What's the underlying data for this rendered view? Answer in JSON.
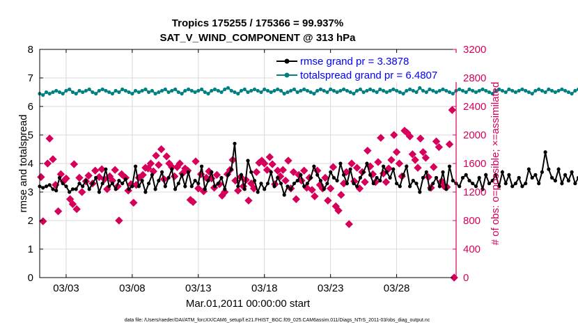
{
  "colors": {
    "rmse": "#000000",
    "spread": "#008080",
    "obs": "#d6005a",
    "legend_text": "#0000ff",
    "axis_right": "#d6005a",
    "grid": "#d9d9d9"
  },
  "chart_data": {
    "type": "line",
    "title_line1": "Tropics 175255 / 175366 = 99.937%",
    "title_line2": "SAT_V_WIND_COMPONENT @ 313 hPa",
    "xlabel": "Mar.01,2011 00:00:00 start",
    "ylabel_left": "rmse and totalspread",
    "ylabel_right": "# of obs: o=possible; ×=assimilated",
    "footer": "data file: /Users/raeder/DAI/ATM_forcXX/CAM6_setup/f.e21.FHIST_BGC.f09_025.CAM6assim.011/Diags_NTrS_2011-03/obs_diag_output.nc",
    "xlim": [
      1,
      32.5
    ],
    "ylim_left": [
      0,
      8
    ],
    "ylim_right": [
      0,
      3200
    ],
    "xticks": [
      3,
      8,
      13,
      18,
      23,
      28
    ],
    "xtick_labels": [
      "03/03",
      "03/08",
      "03/13",
      "03/18",
      "03/23",
      "03/28"
    ],
    "yticks_left": [
      0,
      1,
      2,
      3,
      4,
      5,
      6,
      7,
      8
    ],
    "yticks_right": [
      0,
      400,
      800,
      1200,
      1600,
      2000,
      2400,
      2800,
      3200
    ],
    "legend": [
      {
        "name": "rmse",
        "label": "rmse grand pr = 3.3878"
      },
      {
        "name": "totalspread",
        "label": "totalspread grand pr = 6.4807"
      }
    ],
    "t0": 1.0,
    "dt": 0.25,
    "rmse": [
      3.2,
      3.15,
      3.2,
      3.25,
      3.1,
      3.05,
      3.5,
      3.3,
      3.2,
      3.0,
      3.1,
      3.1,
      3.3,
      3.2,
      3.4,
      3.1,
      3.3,
      3.5,
      3.0,
      3.3,
      3.8,
      3.2,
      3.3,
      3.1,
      3.4,
      3.3,
      3.45,
      3.1,
      3.2,
      3.9,
      3.2,
      3.4,
      3.0,
      3.3,
      3.6,
      3.1,
      3.4,
      3.7,
      3.2,
      3.5,
      3.8,
      3.1,
      3.3,
      3.6,
      3.2,
      3.7,
      3.2,
      3.4,
      3.3,
      3.9,
      3.1,
      3.4,
      3.7,
      3.2,
      3.3,
      3.5,
      3.1,
      3.6,
      3.8,
      4.7,
      3.2,
      3.6,
      3.1,
      4.1,
      3.7,
      3.4,
      3.0,
      3.3,
      3.1,
      3.3,
      3.7,
      3.2,
      3.5,
      3.3,
      2.9,
      3.2,
      3.1,
      3.3,
      3.4,
      3.6,
      3.2,
      3.3,
      3.5,
      3.9,
      3.6,
      3.4,
      3.1,
      3.3,
      3.7,
      3.5,
      3.4,
      4.0,
      3.6,
      3.3,
      3.8,
      3.3,
      3.2,
      3.5,
      3.7,
      4.0,
      3.6,
      3.3,
      3.5,
      3.4,
      3.9,
      3.7,
      3.5,
      3.8,
      3.3,
      3.2,
      3.6,
      3.9,
      3.2,
      3.4,
      3.3,
      3.0,
      3.5,
      3.7,
      3.1,
      3.3,
      3.5,
      3.2,
      3.7,
      3.1,
      3.9,
      3.4,
      3.3,
      3.2,
      3.5,
      3.6,
      3.4,
      3.3,
      3.2,
      3.5,
      3.1,
      3.6,
      3.3,
      3.4,
      3.6,
      3.2,
      3.7,
      3.3,
      3.6,
      3.2,
      3.3,
      3.5,
      3.2,
      3.3,
      3.8,
      3.5,
      3.6,
      3.3,
      3.7,
      4.4,
      3.8,
      3.5,
      3.4,
      3.8,
      3.3,
      3.6,
      3.4,
      3.7,
      3.3,
      3.5,
      3.2,
      3.6,
      3.4,
      3.3,
      3.0,
      3.2,
      3.3,
      3.1,
      3.5,
      3.3,
      4.1,
      3.5,
      3.1
    ],
    "totalspread": [
      6.45,
      6.4,
      6.5,
      6.45,
      6.5,
      6.55,
      6.5,
      6.45,
      6.55,
      6.6,
      6.5,
      6.45,
      6.55,
      6.5,
      6.55,
      6.6,
      6.5,
      6.45,
      6.55,
      6.6,
      6.55,
      6.5,
      6.45,
      6.55,
      6.5,
      6.6,
      6.55,
      6.5,
      6.45,
      6.55,
      6.5,
      6.55,
      6.6,
      6.5,
      6.55,
      6.45,
      6.5,
      6.55,
      6.6,
      6.5,
      6.55,
      6.6,
      6.5,
      6.45,
      6.55,
      6.6,
      6.55,
      6.5,
      6.55,
      6.6,
      6.5,
      6.45,
      6.55,
      6.6,
      6.55,
      6.5,
      6.6,
      6.65,
      6.55,
      6.5,
      6.45,
      6.55,
      6.6,
      6.5,
      6.55,
      6.6,
      6.55,
      6.5,
      6.6,
      6.55,
      6.5,
      6.55,
      6.6,
      6.55,
      6.45,
      6.5,
      6.55,
      6.6,
      6.5,
      6.55,
      6.6,
      6.55,
      6.5,
      6.45,
      6.55,
      6.6,
      6.55,
      6.5,
      6.6,
      6.55,
      6.5,
      6.55,
      6.6,
      6.55,
      6.5,
      6.45,
      6.55,
      6.6,
      6.5,
      6.55,
      6.6,
      6.55,
      6.5,
      6.6,
      6.55,
      6.5,
      6.55,
      6.6,
      6.55,
      6.5,
      6.45,
      6.55,
      6.6,
      6.55,
      6.5,
      6.65,
      6.55,
      6.5,
      6.6,
      6.55,
      6.5,
      6.55,
      6.6,
      6.55,
      6.5,
      6.45,
      6.55,
      6.6,
      6.55,
      6.5,
      6.6,
      6.55,
      6.5,
      6.55,
      6.6,
      6.55,
      6.5,
      6.45,
      6.55,
      6.6,
      6.55,
      6.5,
      6.6,
      6.55,
      6.5,
      6.55,
      6.6,
      6.55,
      6.5,
      6.45,
      6.55,
      6.6,
      6.55,
      6.5,
      6.6,
      6.55,
      6.5,
      6.55,
      6.6,
      6.55,
      6.5,
      6.45,
      6.55,
      6.6,
      6.55,
      6.5,
      6.6,
      6.55,
      6.5,
      6.45,
      6.55,
      6.5,
      6.55
    ],
    "obs": [
      [
        1.1,
        1410
      ],
      [
        1.25,
        790
      ],
      [
        1.6,
        1600
      ],
      [
        1.75,
        1950
      ],
      [
        2.0,
        1660
      ],
      [
        2.2,
        1300
      ],
      [
        2.4,
        930
      ],
      [
        2.6,
        1450
      ],
      [
        2.8,
        1350
      ],
      [
        3.0,
        1390
      ],
      [
        3.3,
        1100
      ],
      [
        3.5,
        1030
      ],
      [
        3.6,
        1590
      ],
      [
        3.8,
        960
      ],
      [
        4.0,
        1400
      ],
      [
        4.2,
        1200
      ],
      [
        4.5,
        1350
      ],
      [
        4.7,
        1430
      ],
      [
        5.0,
        1320
      ],
      [
        5.2,
        1500
      ],
      [
        5.5,
        1410
      ],
      [
        5.7,
        1520
      ],
      [
        5.9,
        1380
      ],
      [
        6.1,
        1240
      ],
      [
        6.3,
        1420
      ],
      [
        6.5,
        1360
      ],
      [
        6.7,
        1510
      ],
      [
        6.9,
        1280
      ],
      [
        7.0,
        800
      ],
      [
        7.2,
        1450
      ],
      [
        7.5,
        1400
      ],
      [
        7.7,
        1220
      ],
      [
        7.9,
        1310
      ],
      [
        8.1,
        1050
      ],
      [
        8.3,
        1300
      ],
      [
        8.5,
        1400
      ],
      [
        8.8,
        1440
      ],
      [
        9.0,
        1540
      ],
      [
        9.2,
        1530
      ],
      [
        9.4,
        1600
      ],
      [
        9.6,
        1490
      ],
      [
        9.8,
        1710
      ],
      [
        10.0,
        1580
      ],
      [
        10.2,
        1800
      ],
      [
        10.4,
        1380
      ],
      [
        10.6,
        1700
      ],
      [
        10.8,
        1600
      ],
      [
        11.0,
        1550
      ],
      [
        11.2,
        1420
      ],
      [
        11.4,
        1550
      ],
      [
        11.6,
        1600
      ],
      [
        11.8,
        1460
      ],
      [
        12.0,
        1530
      ],
      [
        12.2,
        1500
      ],
      [
        12.4,
        1090
      ],
      [
        12.6,
        1060
      ],
      [
        12.8,
        1630
      ],
      [
        13.0,
        1250
      ],
      [
        13.2,
        1450
      ],
      [
        13.4,
        1210
      ],
      [
        13.6,
        1400
      ],
      [
        13.8,
        1490
      ],
      [
        14.0,
        1390
      ],
      [
        14.2,
        1260
      ],
      [
        14.4,
        1440
      ],
      [
        14.6,
        1310
      ],
      [
        14.8,
        1150
      ],
      [
        15.0,
        1200
      ],
      [
        15.2,
        1450
      ],
      [
        15.4,
        1510
      ],
      [
        15.6,
        1650
      ],
      [
        15.8,
        1360
      ],
      [
        16.0,
        1220
      ],
      [
        16.2,
        1410
      ],
      [
        16.4,
        1280
      ],
      [
        16.6,
        1370
      ],
      [
        16.8,
        1080
      ],
      [
        17.0,
        1320
      ],
      [
        17.2,
        1250
      ],
      [
        17.4,
        1480
      ],
      [
        17.6,
        1610
      ],
      [
        17.8,
        1640
      ],
      [
        18.0,
        1600
      ],
      [
        18.2,
        1510
      ],
      [
        18.4,
        1690
      ],
      [
        18.6,
        1590
      ],
      [
        18.8,
        1310
      ],
      [
        19.0,
        1500
      ],
      [
        19.2,
        1420
      ],
      [
        19.4,
        1510
      ],
      [
        19.6,
        1360
      ],
      [
        19.8,
        1640
      ],
      [
        20.0,
        1250
      ],
      [
        20.2,
        1480
      ],
      [
        20.4,
        1100
      ],
      [
        20.6,
        1440
      ],
      [
        20.8,
        1360
      ],
      [
        21.0,
        1500
      ],
      [
        21.2,
        1260
      ],
      [
        21.4,
        1400
      ],
      [
        21.6,
        1230
      ],
      [
        21.8,
        1140
      ],
      [
        22.0,
        1500
      ],
      [
        22.2,
        1300
      ],
      [
        22.4,
        1250
      ],
      [
        22.6,
        1400
      ],
      [
        22.8,
        1080
      ],
      [
        23.0,
        1250
      ],
      [
        23.2,
        1550
      ],
      [
        23.4,
        1000
      ],
      [
        23.6,
        940
      ],
      [
        23.8,
        1160
      ],
      [
        24.0,
        1320
      ],
      [
        24.2,
        1480
      ],
      [
        24.4,
        750
      ],
      [
        24.6,
        1600
      ],
      [
        24.8,
        1350
      ],
      [
        25.0,
        1540
      ],
      [
        25.2,
        1250
      ],
      [
        25.4,
        1480
      ],
      [
        25.6,
        1340
      ],
      [
        25.8,
        1780
      ],
      [
        26.0,
        1560
      ],
      [
        26.2,
        1450
      ],
      [
        26.4,
        1340
      ],
      [
        26.6,
        1620
      ],
      [
        26.8,
        1960
      ],
      [
        27.0,
        1460
      ],
      [
        27.2,
        1340
      ],
      [
        27.4,
        1530
      ],
      [
        27.6,
        1650
      ],
      [
        27.8,
        2000
      ],
      [
        28.0,
        1760
      ],
      [
        28.2,
        1600
      ],
      [
        28.4,
        1420
      ],
      [
        28.6,
        2060
      ],
      [
        28.8,
        2030
      ],
      [
        29.0,
        1980
      ],
      [
        29.2,
        1730
      ],
      [
        29.4,
        1650
      ],
      [
        29.6,
        1540
      ],
      [
        29.8,
        1950
      ],
      [
        30.0,
        1760
      ],
      [
        30.2,
        1680
      ],
      [
        30.4,
        1410
      ],
      [
        30.6,
        1260
      ],
      [
        30.8,
        1550
      ],
      [
        31.0,
        1910
      ],
      [
        31.2,
        1830
      ],
      [
        31.4,
        1350
      ],
      [
        31.6,
        1280
      ],
      [
        31.8,
        1270
      ],
      [
        32.0,
        1870
      ],
      [
        32.2,
        2350
      ],
      [
        32.35,
        0
      ]
    ]
  }
}
